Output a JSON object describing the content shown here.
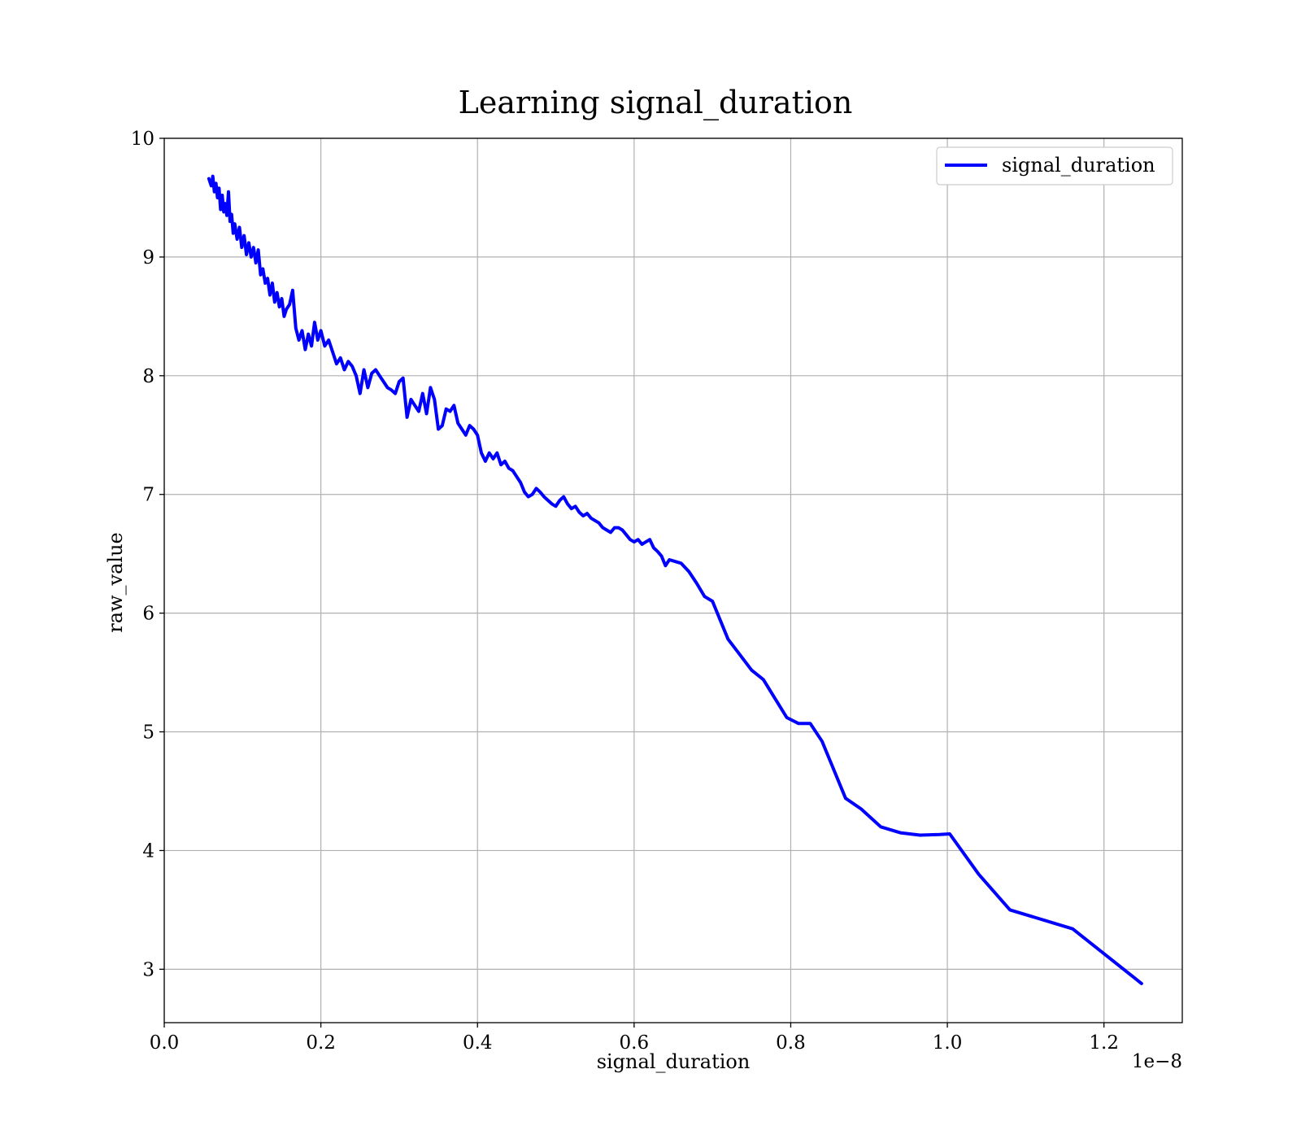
{
  "chart_data": {
    "type": "line",
    "title": "Learning signal_duration",
    "xlabel": "signal_duration",
    "ylabel": "raw_value",
    "x_offset_text": "1e−8",
    "xlim": [
      0.0,
      1.3
    ],
    "ylim": [
      2.55,
      10.0
    ],
    "x_ticks": [
      0.0,
      0.2,
      0.4,
      0.6,
      0.8,
      1.0,
      1.2
    ],
    "x_tick_labels": [
      "0.0",
      "0.2",
      "0.4",
      "0.6",
      "0.8",
      "1.0",
      "1.2"
    ],
    "y_ticks": [
      3,
      4,
      5,
      6,
      7,
      8,
      9,
      10
    ],
    "y_tick_labels": [
      "3",
      "4",
      "5",
      "6",
      "7",
      "8",
      "9",
      "10"
    ],
    "grid": true,
    "legend_position": "top-right",
    "series": [
      {
        "name": "signal_duration",
        "color": "#0000ff",
        "x": [
          0.057,
          0.06,
          0.062,
          0.064,
          0.066,
          0.068,
          0.07,
          0.072,
          0.074,
          0.076,
          0.078,
          0.08,
          0.082,
          0.084,
          0.086,
          0.088,
          0.09,
          0.093,
          0.096,
          0.099,
          0.102,
          0.105,
          0.108,
          0.111,
          0.114,
          0.117,
          0.12,
          0.123,
          0.126,
          0.129,
          0.132,
          0.135,
          0.138,
          0.141,
          0.144,
          0.147,
          0.15,
          0.153,
          0.156,
          0.16,
          0.164,
          0.168,
          0.172,
          0.176,
          0.18,
          0.184,
          0.188,
          0.192,
          0.196,
          0.2,
          0.205,
          0.21,
          0.215,
          0.22,
          0.225,
          0.23,
          0.235,
          0.24,
          0.245,
          0.25,
          0.255,
          0.26,
          0.265,
          0.27,
          0.275,
          0.28,
          0.285,
          0.29,
          0.295,
          0.3,
          0.305,
          0.31,
          0.315,
          0.32,
          0.325,
          0.33,
          0.335,
          0.34,
          0.345,
          0.35,
          0.355,
          0.36,
          0.365,
          0.37,
          0.375,
          0.38,
          0.385,
          0.39,
          0.395,
          0.4,
          0.405,
          0.41,
          0.415,
          0.42,
          0.425,
          0.43,
          0.435,
          0.44,
          0.445,
          0.45,
          0.455,
          0.46,
          0.465,
          0.47,
          0.475,
          0.48,
          0.485,
          0.49,
          0.495,
          0.5,
          0.505,
          0.51,
          0.515,
          0.52,
          0.525,
          0.53,
          0.535,
          0.54,
          0.545,
          0.55,
          0.555,
          0.56,
          0.565,
          0.57,
          0.575,
          0.58,
          0.585,
          0.59,
          0.595,
          0.6,
          0.605,
          0.61,
          0.615,
          0.62,
          0.625,
          0.63,
          0.635,
          0.64,
          0.645,
          0.65,
          0.66,
          0.67,
          0.68,
          0.69,
          0.7,
          0.72,
          0.735,
          0.75,
          0.765,
          0.78,
          0.795,
          0.81,
          0.825,
          0.84,
          0.87,
          0.89,
          0.915,
          0.94,
          0.965,
          0.99,
          1.003,
          1.04,
          1.08,
          1.16,
          1.248
        ],
        "y": [
          9.66,
          9.6,
          9.68,
          9.55,
          9.62,
          9.5,
          9.58,
          9.4,
          9.52,
          9.38,
          9.45,
          9.35,
          9.55,
          9.3,
          9.36,
          9.2,
          9.28,
          9.15,
          9.25,
          9.08,
          9.18,
          9.02,
          9.12,
          9.0,
          9.08,
          8.95,
          9.06,
          8.85,
          8.9,
          8.78,
          8.82,
          8.68,
          8.78,
          8.62,
          8.7,
          8.58,
          8.65,
          8.5,
          8.56,
          8.6,
          8.72,
          8.4,
          8.3,
          8.38,
          8.22,
          8.35,
          8.25,
          8.45,
          8.3,
          8.38,
          8.25,
          8.3,
          8.2,
          8.1,
          8.15,
          8.05,
          8.12,
          8.08,
          8.0,
          7.85,
          8.05,
          7.9,
          8.02,
          8.05,
          8.0,
          7.95,
          7.9,
          7.88,
          7.85,
          7.95,
          7.98,
          7.65,
          7.8,
          7.75,
          7.7,
          7.85,
          7.68,
          7.9,
          7.8,
          7.55,
          7.58,
          7.72,
          7.7,
          7.75,
          7.6,
          7.55,
          7.5,
          7.58,
          7.55,
          7.5,
          7.35,
          7.28,
          7.35,
          7.3,
          7.35,
          7.25,
          7.28,
          7.22,
          7.2,
          7.15,
          7.1,
          7.02,
          6.98,
          7.0,
          7.05,
          7.02,
          6.98,
          6.95,
          6.92,
          6.9,
          6.95,
          6.98,
          6.92,
          6.88,
          6.9,
          6.85,
          6.82,
          6.84,
          6.8,
          6.78,
          6.76,
          6.72,
          6.7,
          6.68,
          6.72,
          6.72,
          6.7,
          6.66,
          6.62,
          6.6,
          6.62,
          6.58,
          6.6,
          6.62,
          6.55,
          6.52,
          6.48,
          6.4,
          6.45,
          6.44,
          6.42,
          6.35,
          6.25,
          6.14,
          6.1,
          5.78,
          5.65,
          5.52,
          5.44,
          5.28,
          5.12,
          5.07,
          5.07,
          4.92,
          4.44,
          4.35,
          4.2,
          4.15,
          4.13,
          4.135,
          4.14,
          3.8,
          3.5,
          3.34,
          2.88
        ]
      }
    ]
  }
}
